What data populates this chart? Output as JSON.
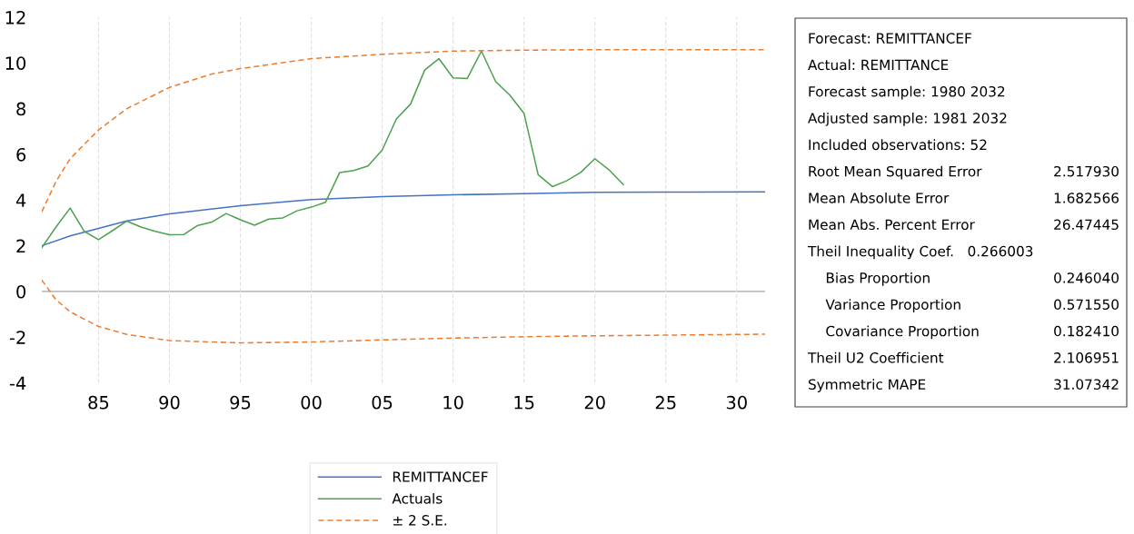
{
  "chart_data": {
    "type": "line",
    "xlim": [
      1981,
      2032
    ],
    "xticks": [
      {
        "value": 1985,
        "label": "85"
      },
      {
        "value": 1990,
        "label": "90"
      },
      {
        "value": 1995,
        "label": "95"
      },
      {
        "value": 2000,
        "label": "00"
      },
      {
        "value": 2005,
        "label": "05"
      },
      {
        "value": 2010,
        "label": "10"
      },
      {
        "value": 2015,
        "label": "15"
      },
      {
        "value": 2020,
        "label": "20"
      },
      {
        "value": 2025,
        "label": "25"
      },
      {
        "value": 2030,
        "label": "30"
      }
    ],
    "ylim": [
      -4,
      12
    ],
    "yticks": [
      -4,
      -2,
      0,
      2,
      4,
      6,
      8,
      10,
      12
    ],
    "grid": "x",
    "legend": "bottom",
    "line_style": "solid",
    "ref_lines": [
      {
        "axis": "y",
        "value": 0,
        "color": "#bfbfbf"
      }
    ],
    "series": [
      {
        "name": "REMITTANCEF",
        "color": "#4472c4",
        "x": [
          1981,
          1983,
          1985,
          1987,
          1990,
          1995,
          2000,
          2005,
          2010,
          2015,
          2020,
          2025,
          2032
        ],
        "values": [
          2.0,
          2.43,
          2.76,
          3.09,
          3.4,
          3.75,
          4.02,
          4.15,
          4.23,
          4.28,
          4.34,
          4.35,
          4.36
        ]
      },
      {
        "name": "Actuals",
        "color": "#4ea14e",
        "x": [
          1981,
          1982,
          1983,
          1984,
          1985,
          1986,
          1987,
          1988,
          1989,
          1990,
          1991,
          1992,
          1993,
          1994,
          1995,
          1996,
          1997,
          1998,
          1999,
          2000,
          2001,
          2002,
          2003,
          2004,
          2005,
          2006,
          2007,
          2008,
          2009,
          2010,
          2011,
          2012,
          2013,
          2014,
          2015,
          2016,
          2017,
          2018,
          2019,
          2020,
          2021,
          2022
        ],
        "values": [
          1.92,
          2.82,
          3.65,
          2.63,
          2.27,
          2.67,
          3.08,
          2.82,
          2.63,
          2.48,
          2.49,
          2.89,
          3.04,
          3.41,
          3.14,
          2.9,
          3.17,
          3.22,
          3.53,
          3.69,
          3.9,
          5.2,
          5.29,
          5.49,
          6.19,
          7.55,
          8.2,
          9.69,
          10.19,
          9.35,
          9.32,
          10.52,
          9.19,
          8.59,
          7.8,
          5.11,
          4.59,
          4.84,
          5.21,
          5.81,
          5.32,
          4.68
        ]
      },
      {
        "name": "± 2 S.E.",
        "color": "#ed7d31",
        "line_style": "dashed",
        "x": [
          1981,
          1982,
          1983,
          1985,
          1987,
          1990,
          1993,
          1995,
          2000,
          2005,
          2010,
          2015,
          2020,
          2025,
          2032
        ],
        "values": [
          3.49,
          4.81,
          5.81,
          7.07,
          8.0,
          8.93,
          9.52,
          9.75,
          10.19,
          10.38,
          10.52,
          10.56,
          10.58,
          10.58,
          10.58
        ]
      },
      {
        "color": "#ed7d31",
        "line_style": "dashed",
        "x": [
          1981,
          1982,
          1983,
          1985,
          1987,
          1990,
          1995,
          2000,
          2005,
          2010,
          2015,
          2020,
          2025,
          2032
        ],
        "values": [
          0.5,
          -0.36,
          -0.89,
          -1.53,
          -1.88,
          -2.15,
          -2.25,
          -2.21,
          -2.12,
          -2.04,
          -1.98,
          -1.94,
          -1.91,
          -1.87
        ]
      }
    ],
    "annotations": [
      "Forecast: REMITTANCEF",
      "Actual: REMITTANCE",
      "Forecast sample: 1980 2032",
      "Adjusted sample: 1981 2032",
      "Included observations: 52",
      "Root Mean Squared Error\t2.517930",
      "Mean Absolute Error\t1.682566",
      "Mean Abs. Percent Error\t26.47445",
      "Theil Inequality Coef.   0.266003",
      "    Bias Proportion\t0.246040",
      "    Variance Proportion\t0.571550",
      "    Covariance Proportion\t0.182410",
      "Theil U2 Coefficient\t2.106951",
      "Symmetric MAPE\t31.07342"
    ]
  }
}
